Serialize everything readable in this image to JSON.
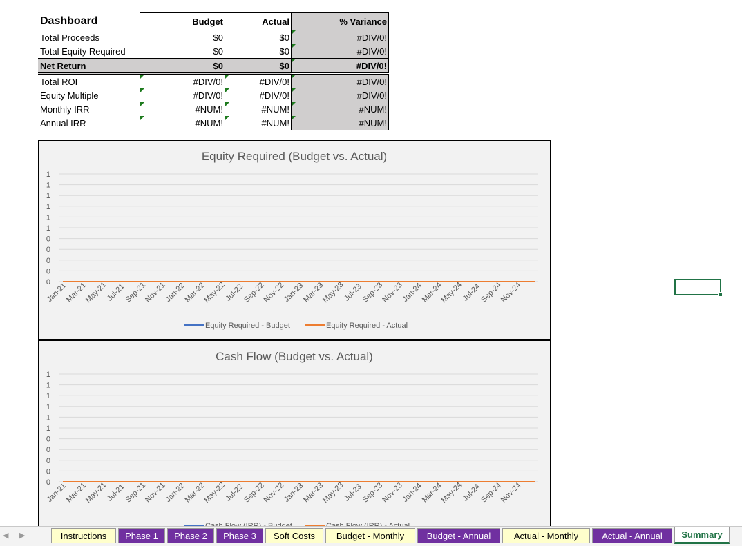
{
  "dashboard": {
    "title": "Dashboard",
    "headers": [
      "Budget",
      "Actual",
      "% Variance"
    ],
    "rows": [
      {
        "label": "Total Proceeds",
        "budget": "$0",
        "actual": "$0",
        "variance": "#DIV/0!"
      },
      {
        "label": "Total Equity Required",
        "budget": "$0",
        "actual": "$0",
        "variance": "#DIV/0!"
      },
      {
        "label": "Net Return",
        "budget": "$0",
        "actual": "$0",
        "variance": "#DIV/0!"
      },
      {
        "label": "Total ROI",
        "budget": "#DIV/0!",
        "actual": "#DIV/0!",
        "variance": "#DIV/0!"
      },
      {
        "label": "Equity Multiple",
        "budget": "#DIV/0!",
        "actual": "#DIV/0!",
        "variance": "#DIV/0!"
      },
      {
        "label": "Monthly IRR",
        "budget": "#NUM!",
        "actual": "#NUM!",
        "variance": "#NUM!"
      },
      {
        "label": "Annual IRR",
        "budget": "#NUM!",
        "actual": "#NUM!",
        "variance": "#NUM!"
      }
    ]
  },
  "colors": {
    "budget_series": "#4472c4",
    "actual_series": "#ed7d31",
    "tab_purple": "#7030a0",
    "tab_yellow": "#ffffcc",
    "excel_green": "#217346"
  },
  "chart_data": [
    {
      "type": "line",
      "title": "Equity Required (Budget vs. Actual)",
      "y_tick_labels": [
        "1",
        "1",
        "1",
        "1",
        "1",
        "1",
        "0",
        "0",
        "0",
        "0",
        "0"
      ],
      "x": [
        "Jan-21",
        "Mar-21",
        "May-21",
        "Jul-21",
        "Sep-21",
        "Nov-21",
        "Jan-22",
        "Mar-22",
        "May-22",
        "Jul-22",
        "Sep-22",
        "Nov-22",
        "Jan-23",
        "Mar-23",
        "May-23",
        "Jul-23",
        "Sep-23",
        "Nov-23",
        "Jan-24",
        "Mar-24",
        "May-24",
        "Jul-24",
        "Sep-24",
        "Nov-24"
      ],
      "series": [
        {
          "name": "Equity Required - Budget",
          "values": [
            0,
            0,
            0,
            0,
            0,
            0,
            0,
            0,
            0,
            0,
            0,
            0,
            0,
            0,
            0,
            0,
            0,
            0,
            0,
            0,
            0,
            0,
            0,
            0
          ]
        },
        {
          "name": "Equity Required - Actual",
          "values": [
            0,
            0,
            0,
            0,
            0,
            0,
            0,
            0,
            0,
            0,
            0,
            0,
            0,
            0,
            0,
            0,
            0,
            0,
            0,
            0,
            0,
            0,
            0,
            0
          ]
        }
      ],
      "legend": "bottom",
      "grid": true
    },
    {
      "type": "line",
      "title": "Cash Flow (Budget vs. Actual)",
      "y_tick_labels": [
        "1",
        "1",
        "1",
        "1",
        "1",
        "1",
        "0",
        "0",
        "0",
        "0",
        "0"
      ],
      "x": [
        "Jan-21",
        "Mar-21",
        "May-21",
        "Jul-21",
        "Sep-21",
        "Nov-21",
        "Jan-22",
        "Mar-22",
        "May-22",
        "Jul-22",
        "Sep-22",
        "Nov-22",
        "Jan-23",
        "Mar-23",
        "May-23",
        "Jul-23",
        "Sep-23",
        "Nov-23",
        "Jan-24",
        "Mar-24",
        "May-24",
        "Jul-24",
        "Sep-24",
        "Nov-24"
      ],
      "series": [
        {
          "name": "Cash Flow (IRR) - Budget",
          "values": [
            0,
            0,
            0,
            0,
            0,
            0,
            0,
            0,
            0,
            0,
            0,
            0,
            0,
            0,
            0,
            0,
            0,
            0,
            0,
            0,
            0,
            0,
            0,
            0
          ]
        },
        {
          "name": "Cash Flow (IRR) - Actual",
          "values": [
            0,
            0,
            0,
            0,
            0,
            0,
            0,
            0,
            0,
            0,
            0,
            0,
            0,
            0,
            0,
            0,
            0,
            0,
            0,
            0,
            0,
            0,
            0,
            0
          ]
        }
      ],
      "legend": "bottom",
      "grid": true
    }
  ],
  "tabs": [
    {
      "label": "Instructions",
      "style": "yellow"
    },
    {
      "label": "Phase 1",
      "style": "purple"
    },
    {
      "label": "Phase 2",
      "style": "purple"
    },
    {
      "label": "Phase 3",
      "style": "purple"
    },
    {
      "label": "Soft Costs",
      "style": "yellow"
    },
    {
      "label": "Budget - Monthly",
      "style": "yellow"
    },
    {
      "label": "Budget - Annual",
      "style": "purple"
    },
    {
      "label": "Actual - Monthly",
      "style": "yellow"
    },
    {
      "label": "Actual - Annual",
      "style": "purple"
    },
    {
      "label": "Summary",
      "style": "active"
    }
  ],
  "nav": {
    "prev": "◀",
    "next": "▶"
  }
}
